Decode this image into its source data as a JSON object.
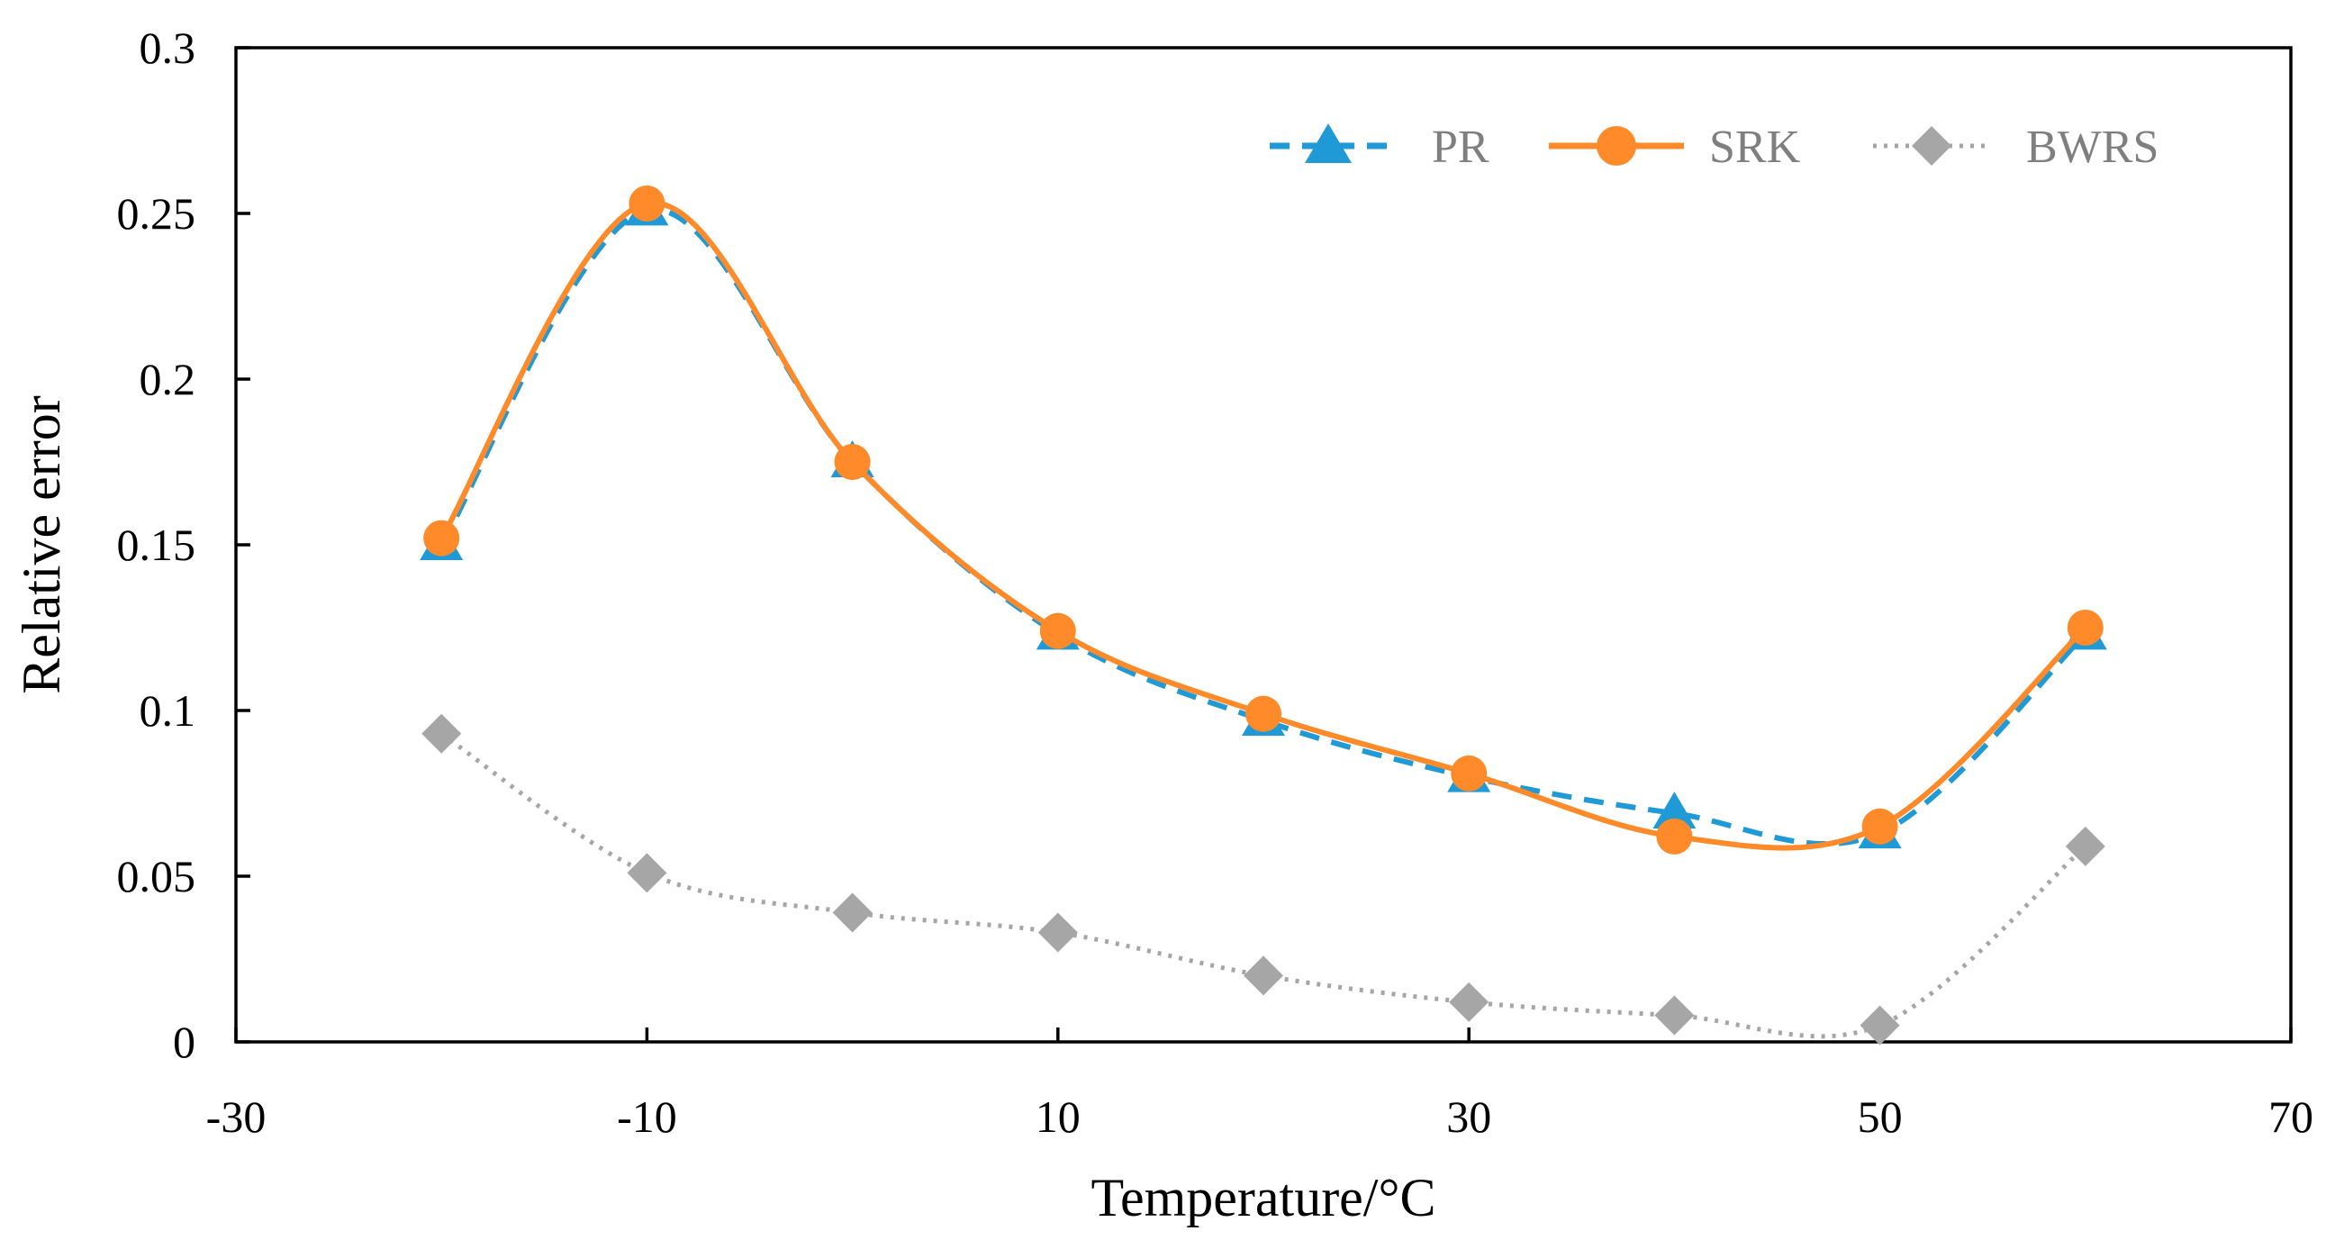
{
  "chart_data": {
    "type": "line",
    "title": "",
    "xlabel": "Temperature/°C",
    "ylabel": "Relative error",
    "xlim": [
      -30,
      70
    ],
    "ylim": [
      0,
      0.3
    ],
    "x_ticks": [
      -30,
      -10,
      10,
      30,
      50,
      70
    ],
    "y_ticks": [
      0,
      0.05,
      0.1,
      0.15,
      0.2,
      0.25,
      0.3
    ],
    "x_tick_labels": [
      "-30",
      "-10",
      "10",
      "30",
      "50",
      "70"
    ],
    "y_tick_labels": [
      "0",
      "0.05",
      "0.1",
      "0.15",
      "0.2",
      "0.25",
      "0.3"
    ],
    "grid": false,
    "legend_position": "top-right",
    "x": [
      -20,
      -10,
      0,
      10,
      20,
      30,
      40,
      50,
      60
    ],
    "series": [
      {
        "name": "PR",
        "values": [
          0.15,
          0.251,
          0.175,
          0.123,
          0.097,
          0.08,
          0.069,
          0.063,
          0.123
        ],
        "color": "#1f9ad6",
        "marker": "triangle",
        "line": "dashed"
      },
      {
        "name": "SRK",
        "values": [
          0.152,
          0.253,
          0.175,
          0.124,
          0.099,
          0.081,
          0.062,
          0.065,
          0.125
        ],
        "color": "#ff8a2a",
        "marker": "circle",
        "line": "solid"
      },
      {
        "name": "BWRS",
        "values": [
          0.093,
          0.051,
          0.039,
          0.033,
          0.02,
          0.012,
          0.008,
          0.005,
          0.059
        ],
        "color": "#a6a6a6",
        "marker": "diamond",
        "line": "dotted"
      }
    ]
  }
}
